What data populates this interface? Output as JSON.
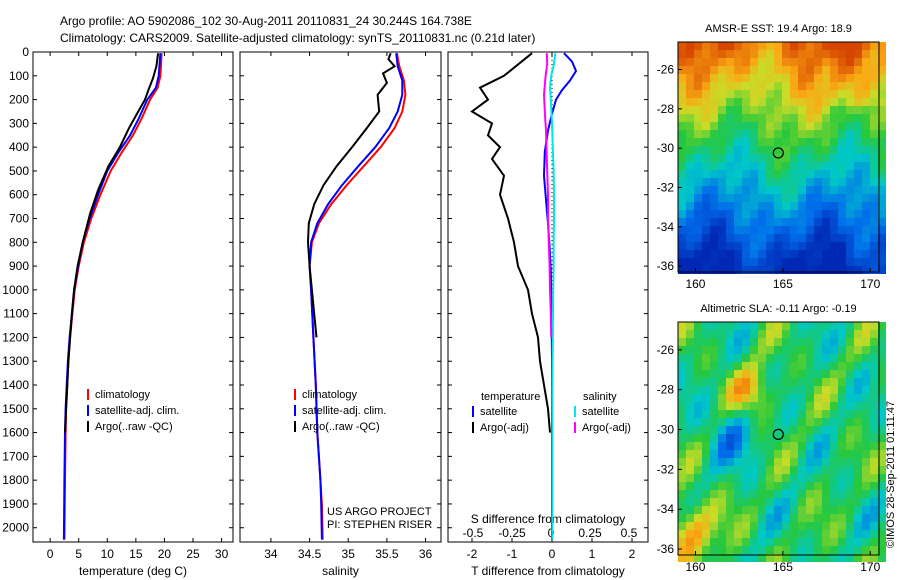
{
  "header": {
    "line1": "Argo profile: AO 5902086_102 30-Aug-2011 20110831_24 30.244S 164.738E",
    "line2": "Climatology: CARS2009. Satellite-adjusted climatology: synTS_20110831.nc (0.21d later)"
  },
  "colors": {
    "climatology": "#ff0000",
    "satellite": "#0000ff",
    "argo": "#000000",
    "sat_salinity": "#00e5ee",
    "argo_salinity": "#ff00ff"
  },
  "chart_data": [
    {
      "type": "line",
      "xlabel": "temperature (deg C)",
      "ylabel": "",
      "xlim": [
        -3,
        32
      ],
      "ylim": [
        2060,
        0
      ],
      "xticks": [
        0,
        5,
        10,
        15,
        20,
        25,
        30
      ],
      "yticks": [
        0,
        100,
        200,
        300,
        400,
        500,
        600,
        700,
        800,
        900,
        1000,
        1100,
        1200,
        1300,
        1400,
        1500,
        1600,
        1700,
        1800,
        1900,
        2000
      ],
      "legend": [
        "climatology",
        "satellite-adj. clim.",
        "Argo(..raw -QC)"
      ],
      "series": [
        {
          "name": "climatology",
          "color": "#ff0000",
          "x": [
            19.5,
            19.3,
            18.8,
            17.5,
            16,
            14.5,
            12.6,
            10.6,
            8.8,
            7.2,
            5.9,
            5,
            4.3,
            3.9,
            3.5,
            3.2,
            3,
            2.8,
            2.7,
            2.6,
            2.5
          ],
          "y": [
            5,
            100,
            150,
            200,
            280,
            350,
            420,
            500,
            600,
            700,
            800,
            900,
            1000,
            1100,
            1200,
            1300,
            1400,
            1500,
            1600,
            1800,
            2050
          ]
        },
        {
          "name": "satellite-adj. clim.",
          "color": "#0000ff",
          "x": [
            19.3,
            19,
            18.5,
            17,
            15.5,
            14,
            12,
            10,
            8.4,
            6.9,
            5.7,
            4.9,
            4.2,
            3.8,
            3.4,
            3.1,
            2.9,
            2.7,
            2.6,
            2.5,
            2.4
          ],
          "y": [
            5,
            100,
            150,
            200,
            280,
            350,
            420,
            500,
            600,
            700,
            800,
            900,
            1000,
            1100,
            1200,
            1300,
            1400,
            1500,
            1600,
            1800,
            2050
          ]
        },
        {
          "name": "Argo(..raw -QC)",
          "color": "#000000",
          "x": [
            18.9,
            18.6,
            18,
            17.2,
            16.6,
            15.2,
            13.8,
            12.2,
            10.2,
            8.4,
            7,
            5.7,
            4.8,
            4.2,
            3.8,
            3.5,
            3.2,
            3,
            2.8,
            2.6
          ],
          "y": [
            5,
            60,
            110,
            160,
            200,
            260,
            320,
            400,
            480,
            580,
            680,
            800,
            900,
            1000,
            1100,
            1200,
            1300,
            1400,
            1500,
            1600
          ]
        }
      ]
    },
    {
      "type": "line",
      "xlabel": "salinity",
      "xlim": [
        33.6,
        36.2
      ],
      "ylim": [
        2060,
        0
      ],
      "xticks": [
        34,
        34.5,
        35,
        35.5,
        36
      ],
      "legend": [
        "climatology",
        "satellite-adj. clim.",
        "Argo(..raw -QC)"
      ],
      "annotations": [
        "US ARGO PROJECT",
        "PI: STEPHEN RISER"
      ],
      "series": [
        {
          "name": "climatology",
          "color": "#ff0000",
          "x": [
            35.63,
            35.66,
            35.72,
            35.74,
            35.7,
            35.6,
            35.42,
            35.2,
            34.98,
            34.78,
            34.62,
            34.53,
            34.5,
            34.52,
            34.55,
            34.58,
            34.6,
            34.62,
            34.64,
            34.66,
            34.67
          ],
          "y": [
            5,
            60,
            120,
            180,
            250,
            320,
            400,
            480,
            560,
            640,
            720,
            800,
            900,
            1000,
            1200,
            1400,
            1600,
            1700,
            1800,
            1900,
            2050
          ]
        },
        {
          "name": "satellite-adj. clim.",
          "color": "#0000ff",
          "x": [
            35.62,
            35.64,
            35.7,
            35.7,
            35.64,
            35.53,
            35.35,
            35.13,
            34.92,
            34.74,
            34.6,
            34.52,
            34.5,
            34.52,
            34.55,
            34.58,
            34.6,
            34.62,
            34.64,
            34.65,
            34.66
          ],
          "y": [
            5,
            60,
            120,
            180,
            250,
            320,
            400,
            480,
            560,
            640,
            720,
            800,
            900,
            1000,
            1200,
            1400,
            1600,
            1700,
            1800,
            1900,
            2050
          ]
        },
        {
          "name": "Argo(..raw -QC)",
          "color": "#000000",
          "x": [
            35.55,
            35.52,
            35.6,
            35.45,
            35.5,
            35.38,
            35.4,
            35.24,
            35.05,
            34.85,
            34.68,
            34.56,
            34.49,
            34.48,
            34.5,
            34.53,
            34.56,
            34.59
          ],
          "y": [
            5,
            30,
            60,
            90,
            130,
            180,
            250,
            320,
            400,
            480,
            560,
            640,
            720,
            800,
            900,
            1000,
            1100,
            1200
          ]
        }
      ]
    },
    {
      "type": "line",
      "xlabel": "T difference from climatology",
      "xlabel_top": "S difference from climatology",
      "xlim": [
        -2.6,
        2.4
      ],
      "ylim": [
        2060,
        0
      ],
      "xticks": [
        -2,
        -1,
        0,
        1,
        2
      ],
      "xticks_top": [
        "-0.5",
        "-0.25",
        "0",
        "0.25",
        "0.5"
      ],
      "legend_titles": [
        "temperature",
        "salinity"
      ],
      "legend": [
        "satellite",
        "Argo(-adj)",
        "satellite",
        "Argo(-adj)"
      ],
      "series": [
        {
          "name": "satellite",
          "color": "#0000ff",
          "x": [
            0.3,
            0.5,
            0.6,
            0.45,
            0.25,
            0.1,
            0,
            -0.1,
            -0.18,
            -0.2,
            -0.15,
            -0.1,
            -0.06,
            -0.03,
            -0.02,
            -0.01,
            0,
            0,
            0,
            0
          ],
          "y": [
            5,
            40,
            80,
            120,
            160,
            200,
            260,
            330,
            420,
            520,
            620,
            720,
            820,
            920,
            1020,
            1120,
            1300,
            1500,
            1800,
            2050
          ]
        },
        {
          "name": "Argo(-adj)",
          "color": "#000000",
          "x": [
            -0.5,
            -1.2,
            -1.8,
            -1.6,
            -2,
            -1.5,
            -1.6,
            -1.3,
            -1.5,
            -1.2,
            -1.3,
            -1.1,
            -0.95,
            -0.85,
            -0.6,
            -0.5,
            -0.35,
            -0.3,
            -0.2,
            -0.1,
            -0.05
          ],
          "y": [
            5,
            100,
            150,
            200,
            250,
            300,
            350,
            400,
            450,
            520,
            600,
            700,
            800,
            900,
            1000,
            1100,
            1200,
            1300,
            1400,
            1500,
            1600
          ]
        },
        {
          "name": "satellite",
          "color": "#00e5ee",
          "x": [
            0.08,
            0.05,
            -0.02,
            -0.05,
            -0.03,
            0,
            0.02,
            0.04,
            0.05,
            0.05,
            0.04,
            0.04,
            0.03,
            0.02,
            0.01,
            0.01,
            0.01
          ],
          "y": [
            5,
            50,
            100,
            150,
            200,
            300,
            400,
            500,
            600,
            700,
            800,
            900,
            1000,
            1200,
            1400,
            1800,
            2050
          ]
        },
        {
          "name": "Argo(-adj)",
          "color": "#ff00ff",
          "x": [
            -0.13,
            -0.12,
            -0.16,
            -0.2,
            -0.17,
            -0.15,
            -0.14,
            -0.12,
            -0.1,
            -0.1,
            -0.08,
            -0.06,
            -0.05,
            -0.03,
            -0.02
          ],
          "y": [
            5,
            50,
            100,
            180,
            280,
            330,
            400,
            500,
            600,
            700,
            800,
            900,
            1000,
            1100,
            1200
          ]
        }
      ]
    },
    {
      "type": "heatmap",
      "title": "AMSR-E SST: 19.4 Argo: 18.9",
      "xlim": [
        159,
        170.5
      ],
      "ylim": [
        -36.3,
        -24.6
      ],
      "xticks": [
        160,
        165,
        170
      ],
      "yticks": [
        -26,
        -28,
        -30,
        -32,
        -34,
        -36
      ],
      "marker": {
        "lon": 164.738,
        "lat": -30.244
      }
    },
    {
      "type": "heatmap",
      "title": "Altimetric SLA: -0.11 Argo: -0.19",
      "xlim": [
        159,
        170.5
      ],
      "ylim": [
        -36.3,
        -24.6
      ],
      "xticks": [
        160,
        165,
        170
      ],
      "yticks": [
        -26,
        -28,
        -30,
        -32,
        -34,
        -36
      ],
      "marker": {
        "lon": 164.738,
        "lat": -30.244
      }
    }
  ],
  "footer": {
    "stamp": "©IMOS 28-Sep-2011 01:11:47"
  }
}
